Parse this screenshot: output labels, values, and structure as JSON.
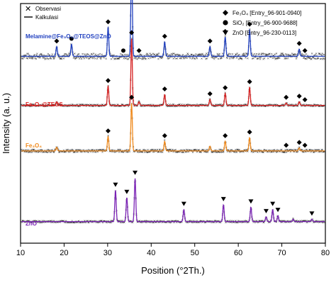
{
  "chart_data": {
    "type": "line",
    "xlabel": "Position (°2Th.)",
    "ylabel": "Intensity (a. u.)",
    "xlim": [
      10,
      80
    ],
    "xticks": [
      "10",
      "20",
      "30",
      "40",
      "50",
      "60",
      "70",
      "80"
    ],
    "fit_legend": [
      {
        "name": "Observasi",
        "marker": "x",
        "color": "#000000"
      },
      {
        "name": "Kalkulasi",
        "marker": "line",
        "color": "#000000"
      }
    ],
    "phase_legend": [
      {
        "label": "Fe₃O₄ [Entry_96-901-0940]",
        "marker": "diamond"
      },
      {
        "label": "SiO₂ [Entry_96-900-9688]",
        "marker": "circle"
      },
      {
        "label": "ZnO [Entry_96-230-0113]",
        "marker": "triangle-down"
      }
    ],
    "series": [
      {
        "name": "Melamine@Fe₃O₄@TEOS@ZnO",
        "color": "#1f3fbf",
        "baseline": 0.78,
        "noise": 0.012,
        "peaks": [
          [
            18.3,
            0.04
          ],
          [
            21.7,
            0.05
          ],
          [
            30.1,
            0.12
          ],
          [
            35.5,
            0.42
          ],
          [
            43.1,
            0.06
          ],
          [
            53.5,
            0.04
          ],
          [
            57.0,
            0.08
          ],
          [
            62.6,
            0.11
          ],
          [
            74.0,
            0.03
          ]
        ],
        "markers": [
          {
            "x": 18.3,
            "type": "diamond"
          },
          {
            "x": 21.7,
            "type": "circle"
          },
          {
            "x": 30.1,
            "type": "diamond"
          },
          {
            "x": 33.6,
            "type": "circle"
          },
          {
            "x": 35.5,
            "type": "diamond"
          },
          {
            "x": 37.2,
            "type": "diamond"
          },
          {
            "x": 43.1,
            "type": "diamond"
          },
          {
            "x": 53.5,
            "type": "diamond"
          },
          {
            "x": 57.0,
            "type": "diamond"
          },
          {
            "x": 62.6,
            "type": "diamond"
          },
          {
            "x": 74.0,
            "type": "diamond"
          },
          {
            "x": 75.3,
            "type": "diamond"
          }
        ]
      },
      {
        "name": "Fe₃O₄@TEOS",
        "color": "#d62020",
        "baseline": 0.575,
        "noise": 0.004,
        "peaks": [
          [
            18.3,
            0.015
          ],
          [
            30.1,
            0.08
          ],
          [
            35.5,
            0.28
          ],
          [
            37.2,
            0.015
          ],
          [
            43.1,
            0.045
          ],
          [
            53.5,
            0.025
          ],
          [
            57.0,
            0.05
          ],
          [
            62.6,
            0.075
          ],
          [
            71.0,
            0.01
          ],
          [
            74.0,
            0.015
          ]
        ],
        "markers": [
          {
            "x": 30.1,
            "type": "diamond"
          },
          {
            "x": 35.5,
            "type": "diamond"
          },
          {
            "x": 43.1,
            "type": "diamond"
          },
          {
            "x": 53.5,
            "type": "diamond"
          },
          {
            "x": 57.0,
            "type": "diamond"
          },
          {
            "x": 62.6,
            "type": "diamond"
          },
          {
            "x": 71.0,
            "type": "diamond"
          },
          {
            "x": 74.0,
            "type": "diamond"
          },
          {
            "x": 75.3,
            "type": "diamond"
          }
        ]
      },
      {
        "name": "Fe₃O₄",
        "color": "#f08a1c",
        "baseline": 0.385,
        "noise": 0.006,
        "peaks": [
          [
            18.3,
            0.015
          ],
          [
            30.1,
            0.06
          ],
          [
            35.5,
            0.2
          ],
          [
            43.1,
            0.04
          ],
          [
            53.5,
            0.02
          ],
          [
            57.0,
            0.04
          ],
          [
            62.6,
            0.055
          ],
          [
            74.0,
            0.012
          ]
        ],
        "markers": [
          {
            "x": 30.1,
            "type": "diamond"
          },
          {
            "x": 35.5,
            "type": "diamond"
          },
          {
            "x": 43.1,
            "type": "diamond"
          },
          {
            "x": 57.0,
            "type": "diamond"
          },
          {
            "x": 62.6,
            "type": "diamond"
          },
          {
            "x": 71.0,
            "type": "diamond"
          },
          {
            "x": 74.0,
            "type": "diamond"
          },
          {
            "x": 75.3,
            "type": "diamond"
          }
        ]
      },
      {
        "name": "ZnO",
        "color": "#7a22b5",
        "baseline": 0.09,
        "noise": 0.004,
        "peaks": [
          [
            31.8,
            0.13
          ],
          [
            34.4,
            0.1
          ],
          [
            36.3,
            0.18
          ],
          [
            47.5,
            0.05
          ],
          [
            56.6,
            0.07
          ],
          [
            62.9,
            0.06
          ],
          [
            66.4,
            0.02
          ],
          [
            67.9,
            0.05
          ],
          [
            69.1,
            0.025
          ],
          [
            72.6,
            0.01
          ],
          [
            76.9,
            0.01
          ]
        ],
        "markers": [
          {
            "x": 31.8,
            "type": "triangle-down"
          },
          {
            "x": 34.4,
            "type": "triangle-down"
          },
          {
            "x": 36.3,
            "type": "triangle-down"
          },
          {
            "x": 47.5,
            "type": "triangle-down"
          },
          {
            "x": 56.6,
            "type": "triangle-down"
          },
          {
            "x": 62.9,
            "type": "triangle-down"
          },
          {
            "x": 66.4,
            "type": "triangle-down"
          },
          {
            "x": 67.9,
            "type": "triangle-down"
          },
          {
            "x": 69.1,
            "type": "triangle-down"
          },
          {
            "x": 76.9,
            "type": "triangle-down"
          }
        ]
      }
    ]
  }
}
